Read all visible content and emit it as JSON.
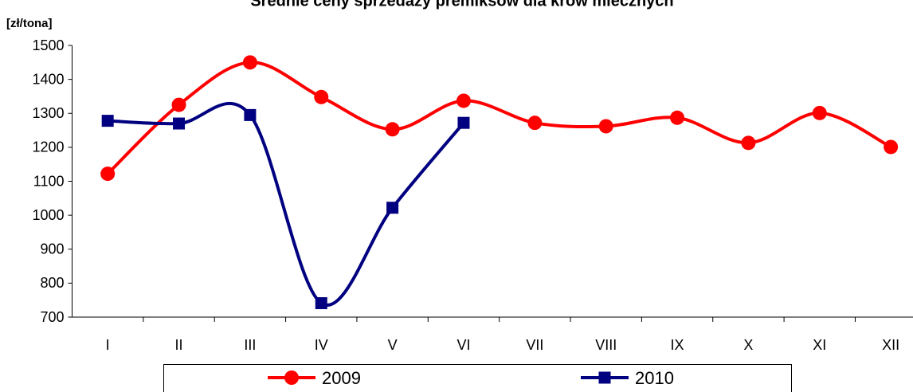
{
  "chart_data": {
    "type": "line",
    "title": "Średnie ceny sprzedaży premiksów dla krów mlecznych",
    "y_label": "[zł/tona]",
    "categories": [
      "I",
      "II",
      "III",
      "IV",
      "V",
      "VI",
      "VII",
      "VIII",
      "IX",
      "X",
      "XI",
      "XII"
    ],
    "series": [
      {
        "name": "2009",
        "color": "#ff0000",
        "marker": "circle",
        "values": [
          1122,
          1325,
          1450,
          1348,
          1253,
          1337,
          1272,
          1262,
          1287,
          1213,
          1301,
          1201
        ]
      },
      {
        "name": "2010",
        "color": "#000080",
        "marker": "square",
        "values": [
          1278,
          1270,
          1295,
          741,
          1022,
          1272,
          null,
          null,
          null,
          null,
          null,
          null
        ]
      }
    ],
    "ylim": [
      700,
      1500
    ],
    "yticks": [
      700,
      800,
      900,
      1000,
      1100,
      1200,
      1300,
      1400,
      1500
    ],
    "grid": false,
    "smooth": true,
    "legend": "bottom"
  }
}
